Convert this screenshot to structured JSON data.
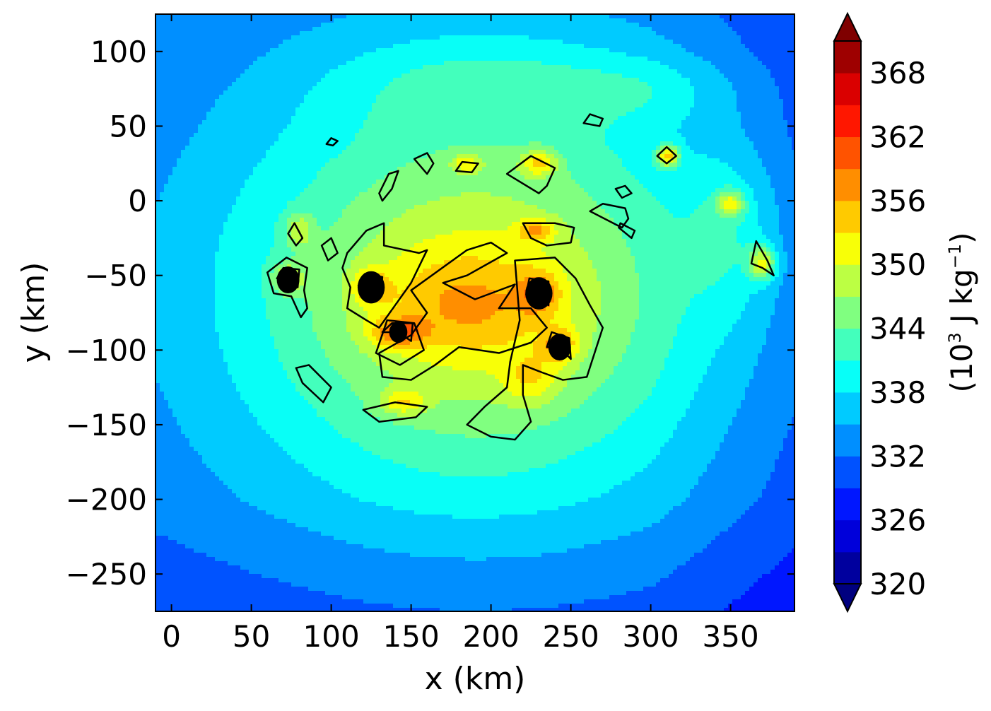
{
  "chart_data": {
    "type": "heatmap",
    "title": "",
    "xlabel": "x (km)",
    "ylabel": "y (km)",
    "xlim": [
      -10,
      390
    ],
    "ylim": [
      -275,
      125
    ],
    "xticks": [
      0,
      50,
      100,
      150,
      200,
      250,
      300,
      350
    ],
    "yticks": [
      100,
      50,
      0,
      -50,
      -100,
      -150,
      -200,
      -250
    ],
    "xtick_labels": [
      "0",
      "50",
      "100",
      "150",
      "200",
      "250",
      "300",
      "350"
    ],
    "ytick_labels": [
      "100",
      "50",
      "0",
      "−50",
      "−100",
      "−150",
      "−200",
      "−250"
    ],
    "colorbar": {
      "label_prefix": "(10",
      "label_sup1": "3",
      "label_middle": " J kg",
      "label_sup2": "−1",
      "label_suffix": ")",
      "range": [
        320,
        371
      ],
      "extend": "both",
      "ticks": [
        368,
        362,
        356,
        350,
        344,
        338,
        332,
        326,
        320
      ],
      "tick_labels": [
        "368",
        "362",
        "356",
        "350",
        "344",
        "338",
        "332",
        "326",
        "320"
      ],
      "colormap": "jet"
    },
    "field": {
      "background": 330,
      "blobs": [
        {
          "x": 190,
          "y": -60,
          "rx": 150,
          "ry": 140,
          "amp": 12
        },
        {
          "x": 190,
          "y": -65,
          "rx": 85,
          "ry": 80,
          "amp": 9
        },
        {
          "x": 185,
          "y": -70,
          "rx": 40,
          "ry": 25,
          "amp": 6
        },
        {
          "x": 125,
          "y": -58,
          "rx": 8,
          "ry": 8,
          "amp": 8
        },
        {
          "x": 230,
          "y": -62,
          "rx": 9,
          "ry": 10,
          "amp": 8
        },
        {
          "x": 73,
          "y": -52,
          "rx": 7,
          "ry": 7,
          "amp": 9
        },
        {
          "x": 243,
          "y": -97,
          "rx": 8,
          "ry": 8,
          "amp": 9
        },
        {
          "x": 142,
          "y": -88,
          "rx": 12,
          "ry": 7,
          "amp": 10
        },
        {
          "x": 225,
          "y": -120,
          "rx": 12,
          "ry": 12,
          "amp": 6
        },
        {
          "x": 370,
          "y": -42,
          "rx": 6,
          "ry": 8,
          "amp": 14
        },
        {
          "x": 350,
          "y": -2,
          "rx": 6,
          "ry": 6,
          "amp": 12
        },
        {
          "x": 311,
          "y": 30,
          "rx": 5,
          "ry": 5,
          "amp": 16
        },
        {
          "x": 230,
          "y": 25,
          "rx": 8,
          "ry": 6,
          "amp": 10
        },
        {
          "x": 228,
          "y": -20,
          "rx": 8,
          "ry": 5,
          "amp": 9
        },
        {
          "x": 185,
          "y": 25,
          "rx": 7,
          "ry": 4,
          "amp": 8
        },
        {
          "x": 80,
          "y": -20,
          "rx": 6,
          "ry": 8,
          "amp": 8
        },
        {
          "x": 145,
          "y": -135,
          "rx": 10,
          "ry": 6,
          "amp": 8
        },
        {
          "x": 200,
          "y": 80,
          "rx": 70,
          "ry": 22,
          "amp": 4
        },
        {
          "x": 300,
          "y": 75,
          "rx": 40,
          "ry": 15,
          "amp": 3
        },
        {
          "x": 350,
          "y": -20,
          "rx": 20,
          "ry": 40,
          "amp": 5
        }
      ]
    },
    "contours": [
      {
        "ring": [
          [
            73,
            -53
          ],
          [
            79,
            -58
          ],
          [
            80,
            -46
          ],
          [
            70,
            -45
          ],
          [
            66,
            -52
          ]
        ]
      },
      {
        "ring": [
          [
            125,
            -58
          ],
          [
            131,
            -63
          ],
          [
            132,
            -51
          ],
          [
            121,
            -49
          ],
          [
            117,
            -57
          ]
        ]
      },
      {
        "ring": [
          [
            230,
            -62
          ],
          [
            236,
            -70
          ],
          [
            236,
            -54
          ],
          [
            224,
            -52
          ],
          [
            222,
            -63
          ]
        ]
      },
      {
        "ring": [
          [
            243,
            -98
          ],
          [
            250,
            -106
          ],
          [
            249,
            -92
          ],
          [
            238,
            -88
          ],
          [
            235,
            -98
          ]
        ]
      },
      {
        "ring": [
          [
            142,
            -88
          ],
          [
            150,
            -94
          ],
          [
            151,
            -82
          ],
          [
            138,
            -82
          ],
          [
            132,
            -88
          ]
        ]
      },
      {
        "ring": [
          [
            135,
            -80
          ],
          [
            152,
            -82
          ],
          [
            158,
            -100
          ],
          [
            143,
            -110
          ],
          [
            128,
            -102
          ]
        ]
      },
      {
        "ring": [
          [
            60,
            -48
          ],
          [
            72,
            -38
          ],
          [
            85,
            -45
          ],
          [
            83,
            -60
          ],
          [
            85,
            -72
          ],
          [
            81,
            -78
          ],
          [
            75,
            -64
          ],
          [
            64,
            -62
          ]
        ]
      },
      {
        "ring": [
          [
            110,
            -35
          ],
          [
            122,
            -20
          ],
          [
            133,
            -15
          ],
          [
            133,
            -30
          ],
          [
            155,
            -35
          ],
          [
            160,
            -33
          ],
          [
            150,
            -55
          ],
          [
            140,
            -70
          ],
          [
            130,
            -85
          ],
          [
            122,
            -80
          ],
          [
            110,
            -72
          ],
          [
            112,
            -58
          ],
          [
            107,
            -45
          ]
        ]
      },
      {
        "ring": [
          [
            150,
            -60
          ],
          [
            185,
            -33
          ],
          [
            200,
            -28
          ],
          [
            210,
            -35
          ],
          [
            185,
            -50
          ],
          [
            170,
            -55
          ],
          [
            190,
            -66
          ],
          [
            215,
            -56
          ],
          [
            205,
            -72
          ],
          [
            225,
            -72
          ],
          [
            235,
            -85
          ],
          [
            225,
            -95
          ],
          [
            205,
            -102
          ],
          [
            180,
            -98
          ],
          [
            165,
            -110
          ],
          [
            150,
            -120
          ],
          [
            132,
            -118
          ],
          [
            130,
            -102
          ],
          [
            150,
            -90
          ],
          [
            160,
            -75
          ]
        ]
      },
      {
        "ring": [
          [
            215,
            -40
          ],
          [
            240,
            -38
          ],
          [
            253,
            -52
          ],
          [
            262,
            -70
          ],
          [
            270,
            -85
          ],
          [
            260,
            -118
          ],
          [
            245,
            -120
          ],
          [
            232,
            -115
          ],
          [
            220,
            -110
          ],
          [
            220,
            -130
          ],
          [
            225,
            -148
          ],
          [
            215,
            -160
          ],
          [
            200,
            -158
          ],
          [
            185,
            -150
          ],
          [
            196,
            -138
          ],
          [
            210,
            -125
          ],
          [
            212,
            -108
          ],
          [
            218,
            -80
          ]
        ]
      },
      {
        "ring": [
          [
            240,
            -15
          ],
          [
            252,
            -18
          ],
          [
            250,
            -28
          ],
          [
            235,
            -30
          ],
          [
            225,
            -25
          ],
          [
            220,
            -15
          ]
        ]
      },
      {
        "ring": [
          [
            210,
            18
          ],
          [
            225,
            30
          ],
          [
            240,
            22
          ],
          [
            235,
            10
          ],
          [
            230,
            5
          ]
        ]
      },
      {
        "ring": [
          [
            192,
            25
          ],
          [
            182,
            26
          ],
          [
            178,
            20
          ],
          [
            188,
            19
          ]
        ]
      },
      {
        "ring": [
          [
            160,
            18
          ],
          [
            152,
            28
          ],
          [
            160,
            32
          ],
          [
            164,
            25
          ]
        ]
      },
      {
        "ring": [
          [
            130,
            5
          ],
          [
            136,
            18
          ],
          [
            142,
            20
          ],
          [
            138,
            8
          ],
          [
            132,
            0
          ]
        ]
      },
      {
        "ring": [
          [
            100,
            -25
          ],
          [
            104,
            -35
          ],
          [
            98,
            -40
          ],
          [
            94,
            -30
          ]
        ]
      },
      {
        "ring": [
          [
            77,
            -15
          ],
          [
            82,
            -25
          ],
          [
            78,
            -30
          ],
          [
            73,
            -22
          ]
        ]
      },
      {
        "ring": [
          [
            86,
            -110
          ],
          [
            100,
            -125
          ],
          [
            95,
            -135
          ],
          [
            82,
            -122
          ],
          [
            78,
            -112
          ]
        ]
      },
      {
        "ring": [
          [
            120,
            -140
          ],
          [
            140,
            -135
          ],
          [
            160,
            -138
          ],
          [
            153,
            -145
          ],
          [
            130,
            -148
          ]
        ]
      },
      {
        "ring": [
          [
            262,
            58
          ],
          [
            270,
            55
          ],
          [
            268,
            50
          ],
          [
            258,
            52
          ]
        ]
      },
      {
        "ring": [
          [
            270,
            -2
          ],
          [
            284,
            -5
          ],
          [
            286,
            -12
          ],
          [
            282,
            -18
          ],
          [
            262,
            -7
          ]
        ]
      },
      {
        "ring": [
          [
            304,
            30
          ],
          [
            310,
            36
          ],
          [
            316,
            30
          ],
          [
            310,
            25
          ]
        ]
      },
      {
        "ring": [
          [
            278,
            8
          ],
          [
            284,
            10
          ],
          [
            288,
            5
          ],
          [
            282,
            2
          ]
        ]
      },
      {
        "ring": [
          [
            366,
            -27
          ],
          [
            373,
            -40
          ],
          [
            377,
            -50
          ],
          [
            370,
            -45
          ],
          [
            363,
            -42
          ]
        ]
      },
      {
        "ring": [
          [
            100,
            42
          ],
          [
            104,
            40
          ],
          [
            101,
            37
          ],
          [
            97,
            38
          ]
        ]
      },
      {
        "ring": [
          [
            281,
            -15
          ],
          [
            290,
            -20
          ],
          [
            288,
            -25
          ],
          [
            280,
            -18
          ]
        ]
      }
    ]
  }
}
